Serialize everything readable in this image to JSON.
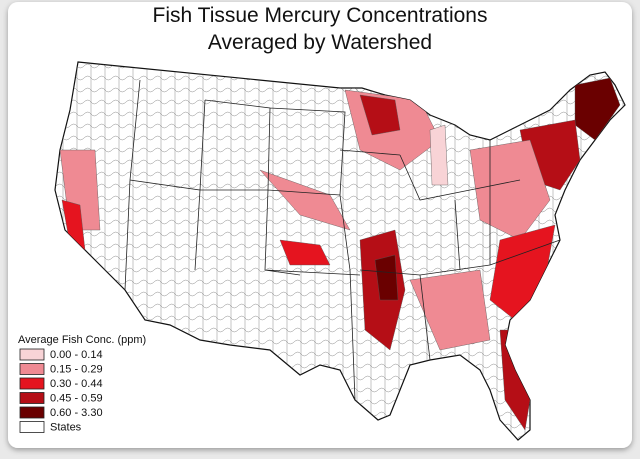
{
  "title": [
    "Fish Tissue Mercury Concentrations",
    "Averaged by Watershed"
  ],
  "legend": {
    "title": "Average Fish Conc. (ppm)",
    "items": [
      {
        "label": "0.00 - 0.14",
        "color": "#f8d3d6"
      },
      {
        "label": "0.15 - 0.29",
        "color": "#ef8a93"
      },
      {
        "label": "0.30 - 0.44",
        "color": "#e5141f"
      },
      {
        "label": "0.45 - 0.59",
        "color": "#b50e16"
      },
      {
        "label": "0.60 - 3.30",
        "color": "#6a0000"
      },
      {
        "label": "States",
        "color": "#ffffff"
      }
    ]
  }
}
